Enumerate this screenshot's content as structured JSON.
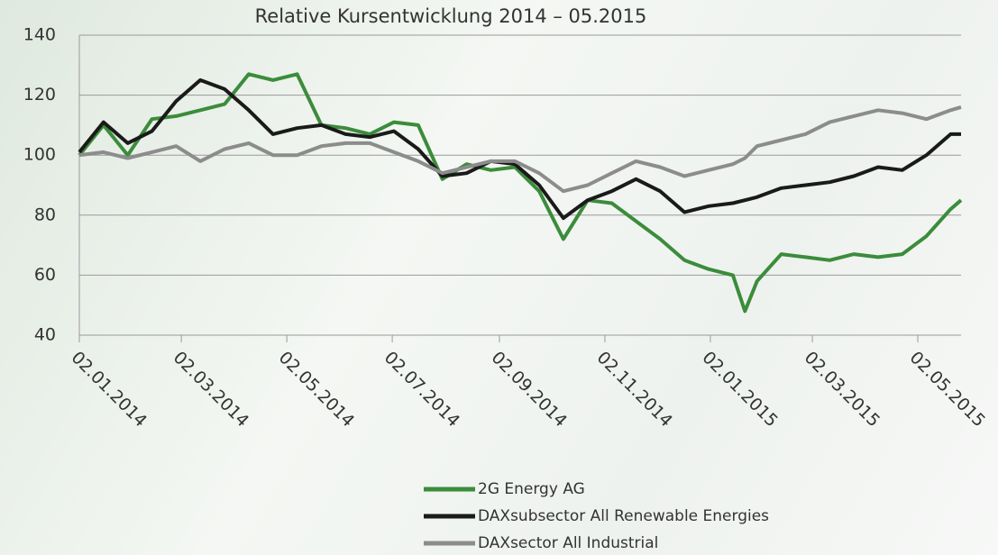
{
  "chart_data": {
    "type": "line",
    "title": "Relative Kursentwicklung 2014 – 05.2015",
    "x": [
      "2014-01-02",
      "2014-01-16",
      "2014-01-30",
      "2014-02-13",
      "2014-02-27",
      "2014-03-13",
      "2014-03-27",
      "2014-04-10",
      "2014-04-24",
      "2014-05-08",
      "2014-05-22",
      "2014-06-05",
      "2014-06-19",
      "2014-07-03",
      "2014-07-17",
      "2014-07-31",
      "2014-08-14",
      "2014-08-28",
      "2014-09-11",
      "2014-09-25",
      "2014-10-09",
      "2014-10-23",
      "2014-11-06",
      "2014-11-20",
      "2014-12-04",
      "2014-12-18",
      "2015-01-01",
      "2015-01-15",
      "2015-01-22",
      "2015-01-29",
      "2015-02-12",
      "2015-02-26",
      "2015-03-12",
      "2015-03-26",
      "2015-04-09",
      "2015-04-23",
      "2015-05-07",
      "2015-05-21",
      "2015-05-27"
    ],
    "series": [
      {
        "name": "2G Energy AG",
        "color": "#3b8c3b",
        "values": [
          100,
          110,
          100,
          112,
          113,
          115,
          117,
          127,
          125,
          127,
          110,
          109,
          107,
          111,
          110,
          92,
          97,
          95,
          96,
          88,
          72,
          85,
          84,
          78,
          72,
          65,
          62,
          60,
          48,
          58,
          67,
          66,
          65,
          67,
          66,
          67,
          73,
          82,
          85
        ]
      },
      {
        "name": "DAXsubsector All Renewable Energies",
        "color": "#1a1a1a",
        "values": [
          101,
          111,
          104,
          108,
          118,
          125,
          122,
          115,
          107,
          109,
          110,
          107,
          106,
          108,
          102,
          93,
          94,
          98,
          97,
          90,
          79,
          85,
          88,
          92,
          88,
          81,
          83,
          84,
          85,
          86,
          89,
          90,
          91,
          93,
          96,
          95,
          100,
          107,
          107
        ]
      },
      {
        "name": "DAXsector All Industrial",
        "color": "#8c8c8c",
        "values": [
          100,
          101,
          99,
          101,
          103,
          98,
          102,
          104,
          100,
          100,
          103,
          104,
          104,
          101,
          98,
          94,
          96,
          98,
          98,
          94,
          88,
          90,
          94,
          98,
          96,
          93,
          95,
          97,
          99,
          103,
          105,
          107,
          111,
          113,
          115,
          114,
          112,
          115,
          116
        ]
      }
    ],
    "xlim": [
      "2014-01-02",
      "2015-05-27"
    ],
    "xticks": [
      {
        "value": "2014-01-02",
        "label": "02.01.2014"
      },
      {
        "value": "2014-03-02",
        "label": "02.03.2014"
      },
      {
        "value": "2014-05-02",
        "label": "02.05.2014"
      },
      {
        "value": "2014-07-02",
        "label": "02.07.2014"
      },
      {
        "value": "2014-09-02",
        "label": "02.09.2014"
      },
      {
        "value": "2014-11-02",
        "label": "02.11.2014"
      },
      {
        "value": "2015-01-02",
        "label": "02.01.2015"
      },
      {
        "value": "2015-03-02",
        "label": "02.03.2015"
      },
      {
        "value": "2015-05-02",
        "label": "02.05.2015"
      }
    ],
    "ylim": [
      40,
      140
    ],
    "yticks": [
      40,
      60,
      80,
      100,
      120,
      140
    ],
    "grid": true,
    "legend": "bottom"
  }
}
